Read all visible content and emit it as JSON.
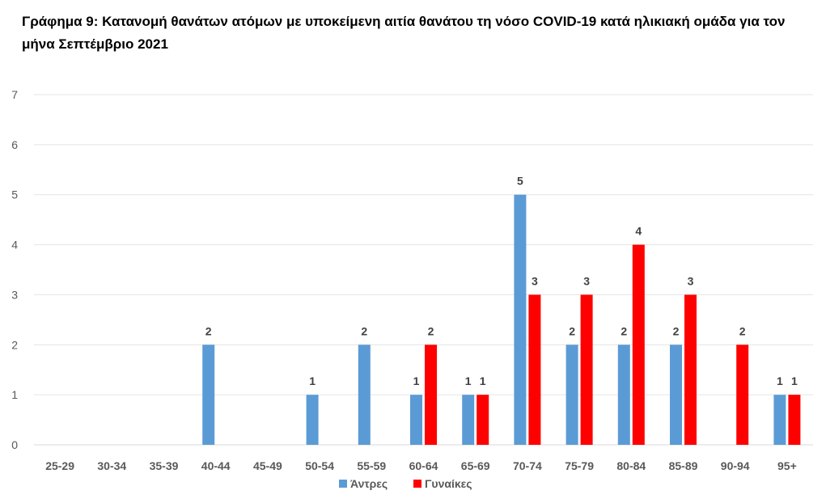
{
  "chart_data": {
    "type": "bar",
    "title": "Γράφημα 9: Κατανομή θανάτων ατόμων με υποκείμενη αιτία θανάτου τη νόσο COVID-19 κατά ηλικιακή ομάδα για τον μήνα Σεπτέμβριο 2021",
    "categories": [
      "25-29",
      "30-34",
      "35-39",
      "40-44",
      "45-49",
      "50-54",
      "55-59",
      "60-64",
      "65-69",
      "70-74",
      "75-79",
      "80-84",
      "85-89",
      "90-94",
      "95+"
    ],
    "series": [
      {
        "name": "Άντρες",
        "color": "#5B9BD5",
        "values": [
          0,
          0,
          0,
          2,
          0,
          1,
          2,
          1,
          1,
          5,
          2,
          2,
          2,
          0,
          1
        ]
      },
      {
        "name": "Γυναίκες",
        "color": "#FF0000",
        "values": [
          0,
          0,
          0,
          0,
          0,
          0,
          0,
          2,
          1,
          3,
          3,
          4,
          3,
          2,
          1
        ]
      }
    ],
    "ylim": [
      0,
      7
    ],
    "yticks": [
      "0",
      "1",
      "2",
      "3",
      "4",
      "5",
      "6",
      "7"
    ],
    "grid": true,
    "legend": "bottom-center"
  }
}
